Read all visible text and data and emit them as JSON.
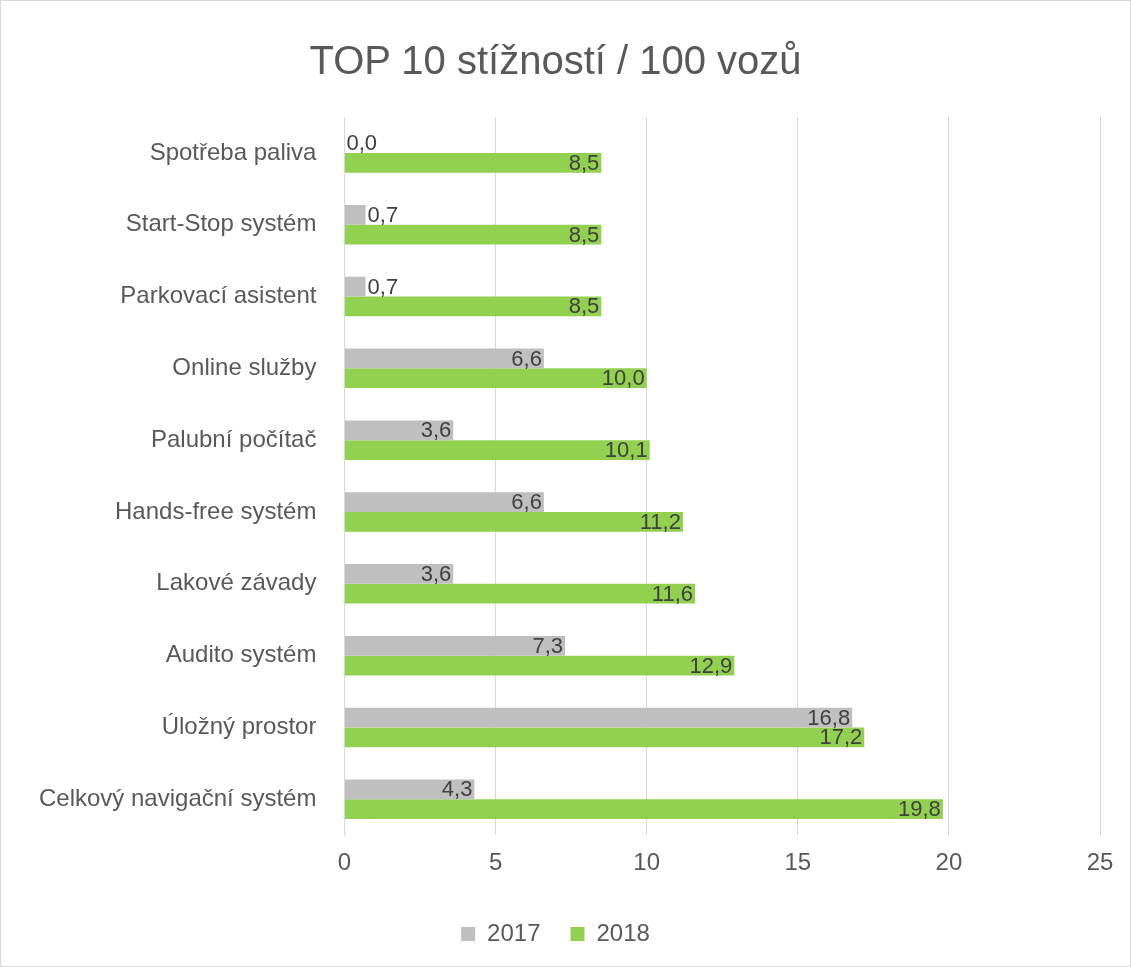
{
  "chart_data": {
    "type": "bar",
    "orientation": "horizontal",
    "title": "TOP 10 stížností / 100 vozů",
    "categories": [
      "Spotřeba paliva",
      "Start-Stop systém",
      "Parkovací asistent",
      "Online služby",
      "Palubní počítač",
      "Hands-free systém",
      "Lakové závady",
      "Audito systém",
      "Úložný prostor",
      "Celkový navigační systém"
    ],
    "series": [
      {
        "name": "2017",
        "color": "#bfbfbf",
        "values": [
          0.0,
          0.7,
          0.7,
          6.6,
          3.6,
          6.6,
          3.6,
          7.3,
          16.8,
          4.3
        ],
        "value_labels": [
          "0,0",
          "0,7",
          "0,7",
          "6,6",
          "3,6",
          "6,6",
          "3,6",
          "7,3",
          "16,8",
          "4,3"
        ]
      },
      {
        "name": "2018",
        "color": "#92d050",
        "values": [
          8.5,
          8.5,
          8.5,
          10.0,
          10.1,
          11.2,
          11.6,
          12.9,
          17.2,
          19.8
        ],
        "value_labels": [
          "8,5",
          "8,5",
          "8,5",
          "10,0",
          "10,1",
          "11,2",
          "11,6",
          "12,9",
          "17,2",
          "19,8"
        ]
      }
    ],
    "xlim": [
      0,
      25
    ],
    "xticks": [
      0,
      5,
      10,
      15,
      20,
      25
    ],
    "grid": "x",
    "legend": "bottom"
  }
}
